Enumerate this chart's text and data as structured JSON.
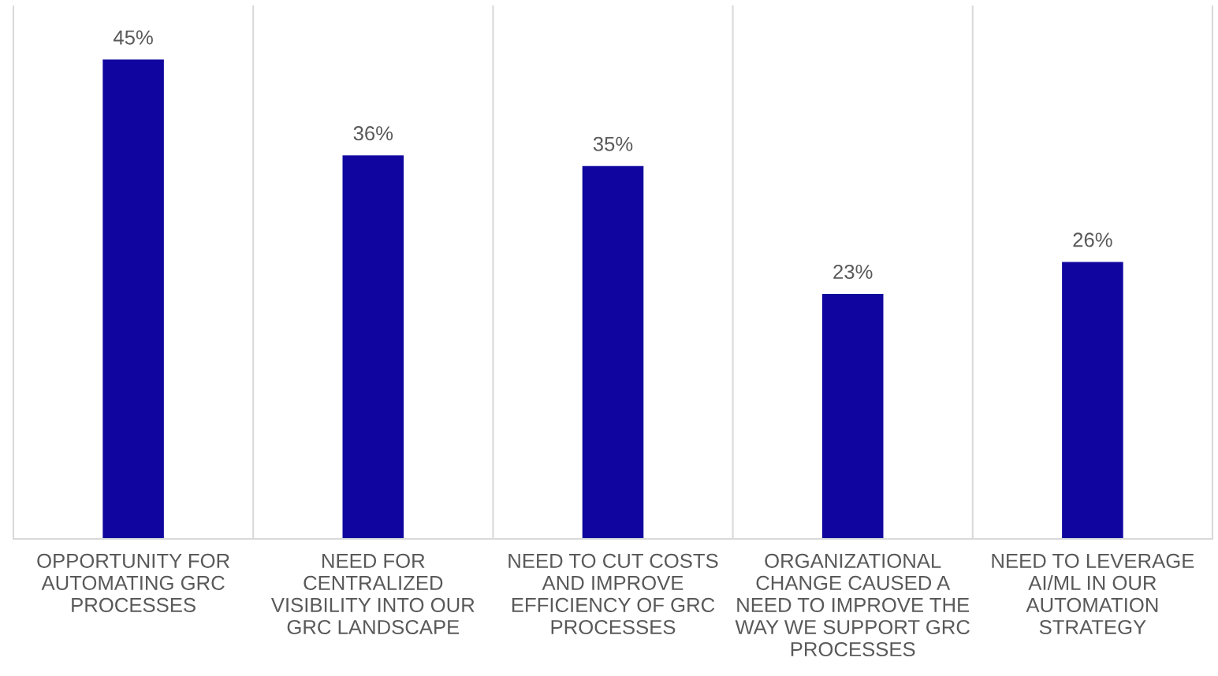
{
  "chart_data": {
    "type": "bar",
    "categories": [
      "OPPORTUNITY FOR AUTOMATING GRC PROCESSES",
      "NEED FOR CENTRALIZED VISIBILITY INTO OUR GRC LANDSCAPE",
      "NEED TO CUT COSTS AND IMPROVE EFFICIENCY OF GRC PROCESSES",
      "ORGANIZATIONAL CHANGE CAUSED A NEED TO IMPROVE THE WAY WE SUPPORT GRC PROCESSES",
      "NEED TO LEVERAGE AI/ML IN OUR AUTOMATION STRATEGY"
    ],
    "values": [
      45,
      36,
      35,
      23,
      26
    ],
    "value_labels": [
      "45%",
      "36%",
      "35%",
      "23%",
      "26%"
    ],
    "color": "#10069f",
    "ylim": [
      0,
      50
    ],
    "grid": "x",
    "legend": false,
    "tick_labels": "x"
  }
}
